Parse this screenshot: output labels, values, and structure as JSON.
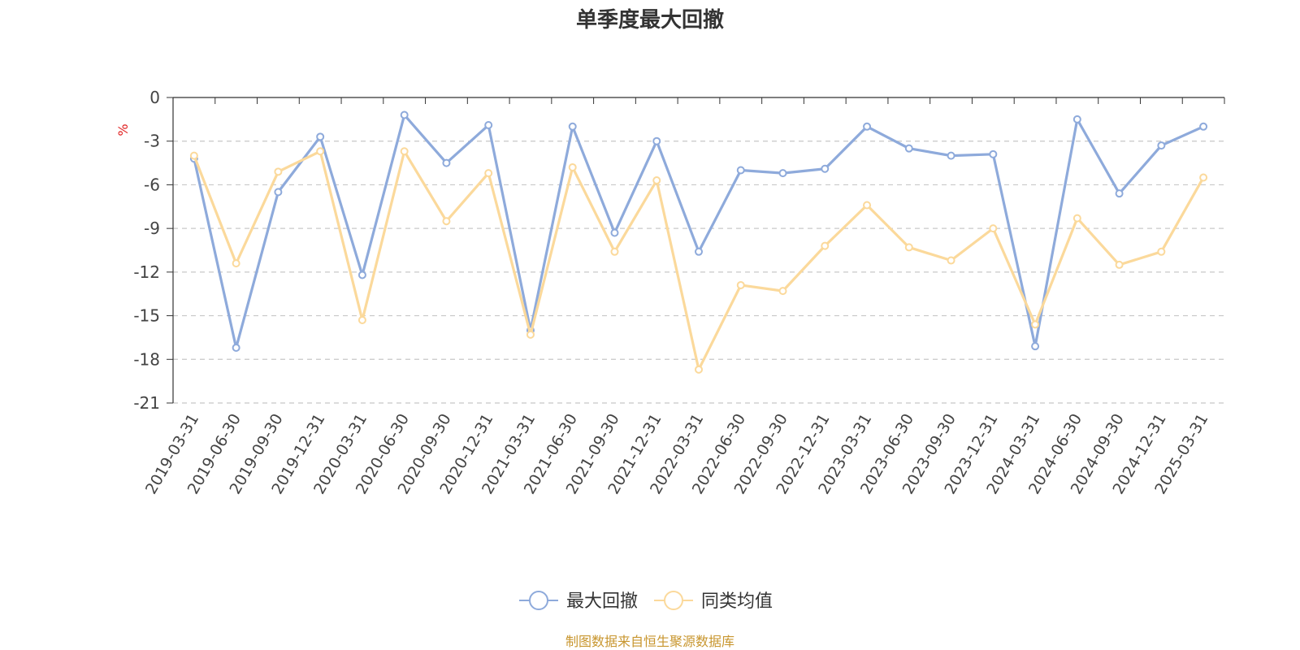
{
  "chart_data": {
    "type": "line",
    "title": "单季度最大回撤",
    "ylabel": "%",
    "ylim": [
      -21,
      0
    ],
    "yticks": [
      0,
      -3,
      -6,
      -9,
      -12,
      -15,
      -18,
      -21
    ],
    "grid": true,
    "legend_position": "bottom",
    "categories": [
      "2019-03-31",
      "2019-06-30",
      "2019-09-30",
      "2019-12-31",
      "2020-03-31",
      "2020-06-30",
      "2020-09-30",
      "2020-12-31",
      "2021-03-31",
      "2021-06-30",
      "2021-09-30",
      "2021-12-31",
      "2022-03-31",
      "2022-06-30",
      "2022-09-30",
      "2022-12-31",
      "2023-03-31",
      "2023-06-30",
      "2023-09-30",
      "2023-12-31",
      "2024-03-31",
      "2024-06-30",
      "2024-09-30",
      "2024-12-31",
      "2025-03-31"
    ],
    "series": [
      {
        "name": "最大回撤",
        "color": "#8eaadb",
        "values": [
          -4.2,
          -17.2,
          -6.5,
          -2.7,
          -12.2,
          -1.2,
          -4.5,
          -1.9,
          -16.0,
          -2.0,
          -9.3,
          -3.0,
          -10.6,
          -5.0,
          -5.2,
          -4.9,
          -2.0,
          -3.5,
          -4.0,
          -3.9,
          -17.1,
          -1.5,
          -6.6,
          -3.3,
          -2.0
        ]
      },
      {
        "name": "同类均值",
        "color": "#fbd99b",
        "values": [
          -4.0,
          -11.4,
          -5.1,
          -3.7,
          -15.3,
          -3.7,
          -8.5,
          -5.2,
          -16.3,
          -4.8,
          -10.6,
          -5.7,
          -18.7,
          -12.9,
          -13.3,
          -10.2,
          -7.4,
          -10.3,
          -11.2,
          -9.0,
          -15.6,
          -8.3,
          -11.5,
          -10.6,
          -5.5
        ]
      }
    ]
  },
  "source_note": "制图数据来自恒生聚源数据库"
}
